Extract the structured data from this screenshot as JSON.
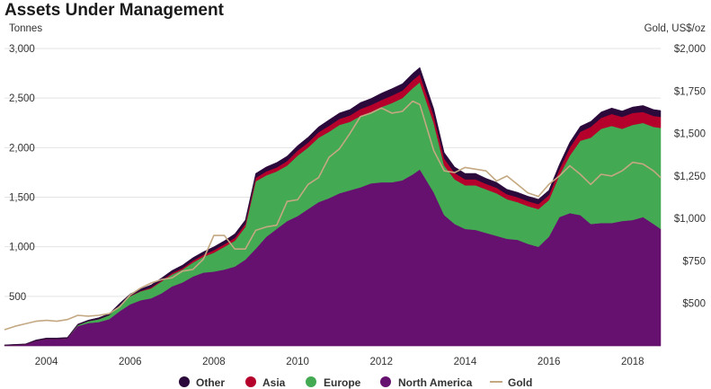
{
  "chart_data": {
    "type": "area",
    "title": "Assets Under Management",
    "ylabel_left": "Tonnes",
    "ylabel_right": "Gold, US$/oz",
    "ylim": [
      0,
      3000
    ],
    "y2lim": [
      250,
      2000
    ],
    "yticks": [
      500,
      1000,
      1500,
      2000,
      2500,
      3000
    ],
    "ytick_labels": [
      "500",
      "1,000",
      "1,500",
      "2,000",
      "2,500",
      "3,000"
    ],
    "y2ticks": [
      500,
      750,
      1000,
      1250,
      1500,
      1750,
      2000
    ],
    "y2tick_labels": [
      "$500",
      "$750",
      "$1,000",
      "$1,250",
      "$1,500",
      "$1,750",
      "$2,000"
    ],
    "xlim": [
      2003.0,
      2018.67
    ],
    "xticks": [
      2004,
      2006,
      2008,
      2010,
      2012,
      2014,
      2016,
      2018
    ],
    "xtick_labels": [
      "2004",
      "2006",
      "2008",
      "2010",
      "2012",
      "2014",
      "2016",
      "2018"
    ],
    "x": [
      2003.0,
      2003.25,
      2003.5,
      2003.75,
      2004.0,
      2004.25,
      2004.5,
      2004.75,
      2005.0,
      2005.25,
      2005.5,
      2005.75,
      2006.0,
      2006.25,
      2006.5,
      2006.75,
      2007.0,
      2007.25,
      2007.5,
      2007.75,
      2008.0,
      2008.25,
      2008.5,
      2008.75,
      2009.0,
      2009.25,
      2009.5,
      2009.75,
      2010.0,
      2010.25,
      2010.5,
      2010.75,
      2011.0,
      2011.25,
      2011.5,
      2011.75,
      2012.0,
      2012.25,
      2012.5,
      2012.75,
      2012.92,
      2013.25,
      2013.5,
      2013.75,
      2014.0,
      2014.25,
      2014.5,
      2014.75,
      2015.0,
      2015.25,
      2015.5,
      2015.75,
      2016.0,
      2016.25,
      2016.5,
      2016.75,
      2017.0,
      2017.25,
      2017.5,
      2017.75,
      2018.0,
      2018.25,
      2018.5,
      2018.67
    ],
    "series": [
      {
        "name": "North America",
        "color": "#66106f",
        "values": [
          5,
          10,
          15,
          50,
          70,
          70,
          75,
          200,
          230,
          240,
          270,
          350,
          420,
          460,
          480,
          530,
          600,
          640,
          700,
          740,
          750,
          770,
          800,
          870,
          980,
          1100,
          1180,
          1260,
          1310,
          1380,
          1450,
          1490,
          1540,
          1570,
          1600,
          1640,
          1650,
          1650,
          1670,
          1730,
          1780,
          1550,
          1320,
          1230,
          1180,
          1170,
          1140,
          1110,
          1080,
          1070,
          1030,
          1000,
          1100,
          1300,
          1340,
          1320,
          1230,
          1240,
          1240,
          1260,
          1270,
          1300,
          1230,
          1180
        ]
      },
      {
        "name": "Europe",
        "color": "#43a952",
        "values": [
          0,
          0,
          0,
          0,
          0,
          0,
          0,
          10,
          20,
          30,
          40,
          60,
          80,
          90,
          100,
          120,
          120,
          130,
          140,
          160,
          190,
          230,
          260,
          330,
          680,
          620,
          580,
          560,
          610,
          620,
          650,
          670,
          690,
          690,
          720,
          720,
          760,
          800,
          830,
          870,
          880,
          700,
          500,
          450,
          440,
          450,
          440,
          430,
          400,
          380,
          380,
          380,
          370,
          420,
          580,
          750,
          870,
          950,
          980,
          930,
          960,
          950,
          980,
          1020
        ]
      },
      {
        "name": "Asia",
        "color": "#b4002b",
        "values": [
          0,
          0,
          0,
          0,
          0,
          0,
          0,
          0,
          0,
          0,
          0,
          0,
          5,
          5,
          10,
          10,
          15,
          15,
          20,
          20,
          25,
          25,
          30,
          30,
          35,
          40,
          40,
          45,
          50,
          50,
          55,
          60,
          60,
          65,
          70,
          70,
          70,
          75,
          75,
          80,
          80,
          75,
          70,
          65,
          60,
          60,
          55,
          55,
          50,
          50,
          50,
          50,
          50,
          60,
          80,
          90,
          110,
          110,
          120,
          120,
          120,
          110,
          110,
          110
        ]
      },
      {
        "name": "Other",
        "color": "#2b0a3b",
        "values": [
          5,
          5,
          5,
          10,
          10,
          10,
          10,
          10,
          10,
          15,
          15,
          20,
          20,
          20,
          25,
          25,
          25,
          30,
          30,
          30,
          35,
          35,
          40,
          40,
          45,
          45,
          50,
          50,
          50,
          55,
          55,
          60,
          60,
          60,
          65,
          65,
          70,
          70,
          70,
          70,
          70,
          70,
          60,
          60,
          60,
          60,
          55,
          55,
          50,
          50,
          50,
          50,
          50,
          50,
          55,
          55,
          55,
          60,
          60,
          60,
          60,
          65,
          65,
          65
        ]
      },
      {
        "name": "Gold",
        "color": "#c4a882",
        "axis": "right",
        "values": [
          345,
          365,
          380,
          395,
          400,
          395,
          405,
          430,
          425,
          430,
          440,
          480,
          550,
          590,
          620,
          640,
          650,
          690,
          700,
          760,
          900,
          900,
          820,
          820,
          930,
          950,
          960,
          1100,
          1110,
          1200,
          1240,
          1360,
          1410,
          1500,
          1600,
          1620,
          1650,
          1620,
          1630,
          1690,
          1670,
          1400,
          1280,
          1270,
          1300,
          1290,
          1280,
          1220,
          1250,
          1200,
          1150,
          1130,
          1200,
          1250,
          1310,
          1260,
          1200,
          1260,
          1250,
          1280,
          1330,
          1320,
          1280,
          1240
        ]
      }
    ],
    "legend": [
      "Other",
      "Asia",
      "Europe",
      "North America",
      "Gold"
    ],
    "legend_position": "bottom-center"
  }
}
